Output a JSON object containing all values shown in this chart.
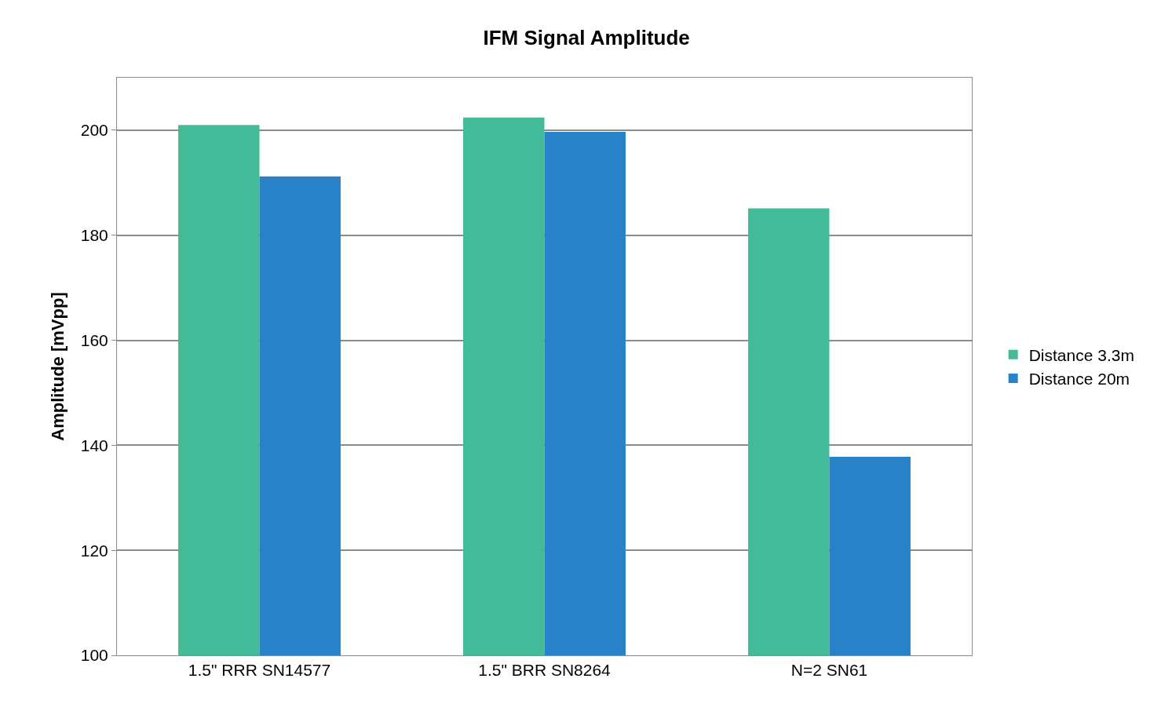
{
  "chart_data": {
    "type": "bar",
    "title": "IFM Signal Amplitude",
    "ylabel": "Amplitude [mVpp]",
    "categories": [
      "1.5\" RRR SN14577",
      "1.5\" BRR SN8264",
      "N=2 SN61"
    ],
    "series": [
      {
        "name": "Distance 3.3m",
        "color": "#43ba98",
        "values": [
          201.0,
          202.4,
          185.1
        ]
      },
      {
        "name": "Distance 20m",
        "color": "#2882c8",
        "values": [
          191.2,
          199.7,
          137.8
        ]
      }
    ],
    "ylim": [
      100,
      210
    ],
    "yticks": [
      100,
      120,
      140,
      160,
      180,
      200
    ],
    "grid": "y",
    "legend": "right"
  }
}
